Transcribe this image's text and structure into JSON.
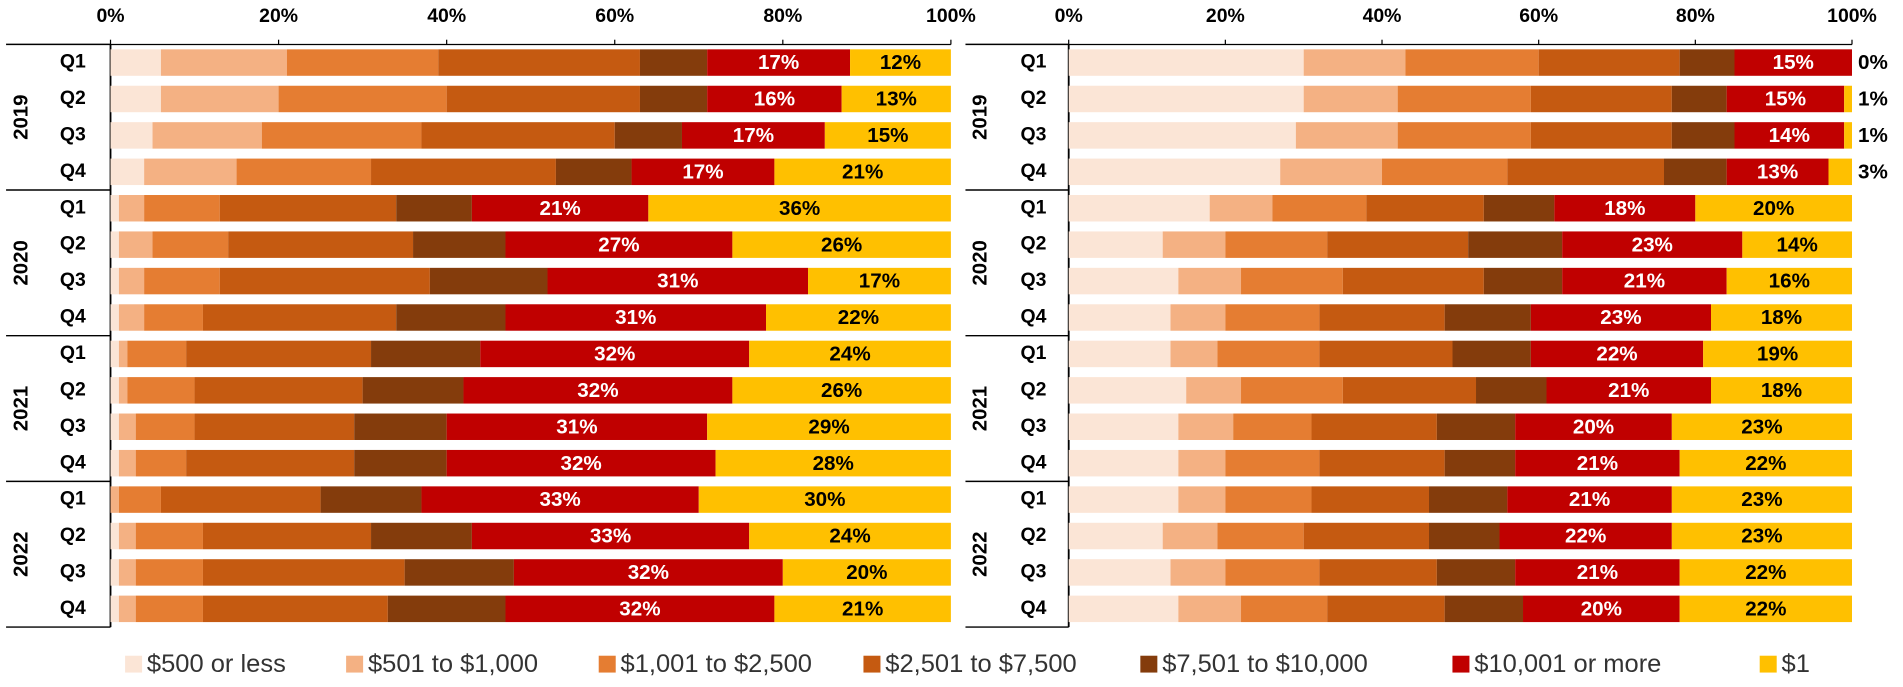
{
  "chart_data": [
    {
      "type": "stacked-bar-horizontal",
      "groups": [
        "2019",
        "2020",
        "2021",
        "2022"
      ],
      "categories": [
        "Q1",
        "Q2",
        "Q3",
        "Q4",
        "Q1",
        "Q2",
        "Q3",
        "Q4",
        "Q1",
        "Q2",
        "Q3",
        "Q4",
        "Q1",
        "Q2",
        "Q3",
        "Q4"
      ],
      "xlim": [
        0,
        100
      ],
      "xticks": [
        {
          "value": 0,
          "label": "0%"
        },
        {
          "value": 20,
          "label": "20%"
        },
        {
          "value": 40,
          "label": "40%"
        },
        {
          "value": 60,
          "label": "60%"
        },
        {
          "value": 80,
          "label": "80%"
        },
        {
          "value": 100,
          "label": "100%"
        }
      ],
      "series": [
        {
          "name": "$500 or less",
          "color": "#fbe5d6",
          "values": [
            6,
            6,
            5,
            4,
            1,
            1,
            1,
            1,
            1,
            1,
            1,
            1,
            0,
            1,
            1,
            1
          ]
        },
        {
          "name": "$501 to $1,000",
          "color": "#f4b183",
          "values": [
            15,
            14,
            13,
            11,
            3,
            4,
            3,
            3,
            1,
            1,
            2,
            2,
            1,
            2,
            2,
            2
          ]
        },
        {
          "name": "$1,001 to $2,500",
          "color": "#e57d32",
          "values": [
            18,
            20,
            19,
            16,
            9,
            9,
            9,
            7,
            7,
            8,
            7,
            6,
            5,
            8,
            8,
            8
          ]
        },
        {
          "name": "$2,501 to $7,500",
          "color": "#c55a11",
          "values": [
            24,
            23,
            23,
            22,
            21,
            22,
            25,
            23,
            22,
            20,
            19,
            20,
            19,
            20,
            24,
            22
          ]
        },
        {
          "name": "$7,501 to $10,000",
          "color": "#843c0c",
          "values": [
            8,
            8,
            8,
            9,
            9,
            11,
            14,
            13,
            13,
            12,
            11,
            11,
            12,
            12,
            13,
            14
          ]
        },
        {
          "name": "$10,001 or more",
          "color": "#c00000",
          "values": [
            17,
            16,
            17,
            17,
            21,
            27,
            31,
            31,
            32,
            32,
            31,
            32,
            33,
            33,
            32,
            32
          ],
          "value_labels": [
            "17%",
            "16%",
            "17%",
            "17%",
            "21%",
            "27%",
            "31%",
            "31%",
            "32%",
            "32%",
            "31%",
            "32%",
            "33%",
            "33%",
            "32%",
            "32%"
          ]
        },
        {
          "name": "$1",
          "color": "#ffc000",
          "values": [
            12,
            13,
            15,
            21,
            36,
            26,
            17,
            22,
            24,
            26,
            29,
            28,
            30,
            24,
            20,
            21
          ],
          "value_labels": [
            "12%",
            "13%",
            "15%",
            "21%",
            "36%",
            "26%",
            "17%",
            "22%",
            "24%",
            "26%",
            "29%",
            "28%",
            "30%",
            "24%",
            "20%",
            "21%"
          ]
        }
      ]
    },
    {
      "type": "stacked-bar-horizontal",
      "groups": [
        "2019",
        "2020",
        "2021",
        "2022"
      ],
      "categories": [
        "Q1",
        "Q2",
        "Q3",
        "Q4",
        "Q1",
        "Q2",
        "Q3",
        "Q4",
        "Q1",
        "Q2",
        "Q3",
        "Q4",
        "Q1",
        "Q2",
        "Q3",
        "Q4"
      ],
      "xlim": [
        0,
        100
      ],
      "xticks": [
        {
          "value": 0,
          "label": "0%"
        },
        {
          "value": 20,
          "label": "20%"
        },
        {
          "value": 40,
          "label": "40%"
        },
        {
          "value": 60,
          "label": "60%"
        },
        {
          "value": 80,
          "label": "80%"
        },
        {
          "value": 100,
          "label": "100%"
        }
      ],
      "series": [
        {
          "color": "#fbe5d6",
          "values": [
            30,
            30,
            29,
            27,
            18,
            12,
            14,
            13,
            13,
            15,
            14,
            14,
            14,
            12,
            13,
            14
          ]
        },
        {
          "color": "#f4b183",
          "values": [
            13,
            12,
            13,
            13,
            8,
            8,
            8,
            7,
            6,
            7,
            7,
            6,
            6,
            7,
            7,
            8
          ]
        },
        {
          "color": "#e57d32",
          "values": [
            17,
            17,
            17,
            16,
            12,
            13,
            13,
            12,
            13,
            13,
            10,
            12,
            11,
            11,
            12,
            11
          ]
        },
        {
          "color": "#c55a11",
          "values": [
            18,
            18,
            18,
            20,
            15,
            18,
            18,
            16,
            17,
            17,
            16,
            16,
            15,
            16,
            15,
            15
          ]
        },
        {
          "color": "#843c0c",
          "values": [
            7,
            7,
            8,
            8,
            9,
            12,
            10,
            11,
            10,
            9,
            10,
            9,
            10,
            9,
            10,
            10
          ]
        },
        {
          "color": "#c00000",
          "values": [
            15,
            15,
            14,
            13,
            18,
            23,
            21,
            23,
            22,
            21,
            20,
            21,
            21,
            22,
            21,
            20
          ],
          "value_labels": [
            "15%",
            "15%",
            "14%",
            "13%",
            "18%",
            "23%",
            "21%",
            "23%",
            "22%",
            "21%",
            "20%",
            "21%",
            "21%",
            "22%",
            "21%",
            "20%"
          ]
        },
        {
          "color": "#ffc000",
          "values": [
            0,
            1,
            1,
            3,
            20,
            14,
            16,
            18,
            19,
            18,
            23,
            22,
            23,
            23,
            22,
            22
          ],
          "value_labels": [
            "0%",
            "1%",
            "1%",
            "3%",
            "20%",
            "14%",
            "16%",
            "18%",
            "19%",
            "18%",
            "23%",
            "22%",
            "23%",
            "23%",
            "22%",
            "22%"
          ]
        }
      ]
    }
  ]
}
